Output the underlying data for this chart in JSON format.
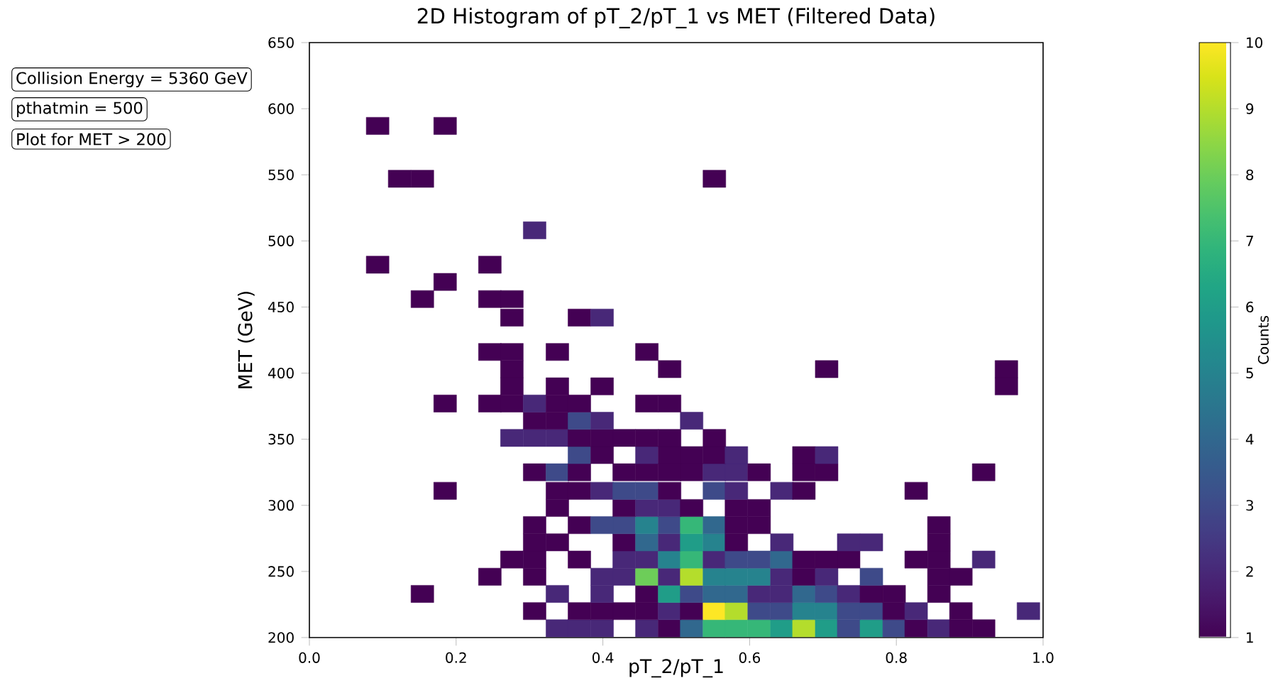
{
  "chart_data": {
    "type": "scatter",
    "title": "2D Histogram of pT_2/pT_1 vs MET (Filtered Data)",
    "xlabel": "pT_2/pT_1",
    "ylabel": "MET (GeV)",
    "clabel": "Counts",
    "annotations": [
      "Collision Energy = 5360 GeV",
      "pthatmin = 500",
      "Plot for MET > 200"
    ],
    "marker": "square",
    "x": [
      0.338,
      0.368,
      0.399,
      0.46,
      0.491,
      0.521,
      0.552,
      0.582,
      0.613,
      0.644,
      0.674,
      0.705,
      0.735,
      0.766,
      0.797,
      0.827,
      0.858,
      0.888,
      0.919,
      0.307,
      0.368,
      0.399,
      0.429,
      0.46,
      0.491,
      0.521,
      0.552,
      0.582,
      0.613,
      0.644,
      0.674,
      0.705,
      0.735,
      0.766,
      0.797,
      0.827,
      0.888,
      0.98,
      0.154,
      0.338,
      0.399,
      0.46,
      0.491,
      0.521,
      0.552,
      0.582,
      0.613,
      0.644,
      0.674,
      0.705,
      0.735,
      0.766,
      0.797,
      0.858,
      0.246,
      0.307,
      0.399,
      0.429,
      0.46,
      0.491,
      0.521,
      0.552,
      0.582,
      0.613,
      0.644,
      0.674,
      0.705,
      0.766,
      0.858,
      0.888,
      0.276,
      0.307,
      0.368,
      0.429,
      0.46,
      0.491,
      0.521,
      0.552,
      0.582,
      0.613,
      0.644,
      0.674,
      0.705,
      0.735,
      0.827,
      0.858,
      0.919,
      0.307,
      0.338,
      0.429,
      0.46,
      0.491,
      0.521,
      0.552,
      0.582,
      0.644,
      0.735,
      0.766,
      0.858,
      0.307,
      0.368,
      0.399,
      0.429,
      0.46,
      0.491,
      0.521,
      0.552,
      0.582,
      0.613,
      0.858,
      0.338,
      0.429,
      0.46,
      0.491,
      0.521,
      0.582,
      0.613,
      0.185,
      0.338,
      0.368,
      0.399,
      0.429,
      0.46,
      0.491,
      0.552,
      0.582,
      0.644,
      0.674,
      0.827,
      0.307,
      0.338,
      0.368,
      0.429,
      0.46,
      0.491,
      0.521,
      0.552,
      0.582,
      0.613,
      0.674,
      0.705,
      0.919,
      0.368,
      0.399,
      0.46,
      0.491,
      0.521,
      0.552,
      0.582,
      0.674,
      0.705,
      0.276,
      0.307,
      0.338,
      0.368,
      0.399,
      0.429,
      0.46,
      0.491,
      0.552,
      0.307,
      0.338,
      0.368,
      0.399,
      0.521,
      0.185,
      0.246,
      0.276,
      0.307,
      0.338,
      0.368,
      0.46,
      0.491,
      0.276,
      0.338,
      0.399,
      0.95,
      0.276,
      0.491,
      0.705,
      0.95,
      0.246,
      0.276,
      0.338,
      0.46,
      0.276,
      0.368,
      0.399,
      0.154,
      0.246,
      0.276,
      0.185,
      0.093,
      0.246,
      0.307,
      0.123,
      0.154,
      0.552,
      0.093,
      0.185
    ],
    "values": [
      207,
      207,
      207,
      207,
      207,
      207,
      207,
      207,
      207,
      207,
      207,
      207,
      207,
      207,
      207,
      207,
      207,
      207,
      207,
      220,
      220,
      220,
      220,
      220,
      220,
      220,
      220,
      220,
      220,
      220,
      220,
      220,
      220,
      220,
      220,
      220,
      220,
      220,
      233,
      233,
      233,
      233,
      233,
      233,
      233,
      233,
      233,
      233,
      233,
      233,
      233,
      233,
      233,
      233,
      246,
      246,
      246,
      246,
      246,
      246,
      246,
      246,
      246,
      246,
      246,
      246,
      246,
      246,
      246,
      246,
      259,
      259,
      259,
      259,
      259,
      259,
      259,
      259,
      259,
      259,
      259,
      259,
      259,
      259,
      259,
      259,
      259,
      272,
      272,
      272,
      272,
      272,
      272,
      272,
      272,
      272,
      272,
      272,
      272,
      285,
      285,
      285,
      285,
      285,
      285,
      285,
      285,
      285,
      285,
      285,
      298,
      298,
      298,
      298,
      298,
      298,
      298,
      311,
      311,
      311,
      311,
      311,
      311,
      311,
      311,
      311,
      311,
      311,
      311,
      325,
      325,
      325,
      325,
      325,
      325,
      325,
      325,
      325,
      325,
      325,
      325,
      325,
      338,
      338,
      338,
      338,
      338,
      338,
      338,
      338,
      338,
      351,
      351,
      351,
      351,
      351,
      351,
      351,
      351,
      351,
      364,
      364,
      364,
      364,
      364,
      377,
      377,
      377,
      377,
      377,
      377,
      377,
      377,
      390,
      390,
      390,
      390,
      403,
      403,
      403,
      403,
      416,
      416,
      416,
      416,
      442,
      442,
      442,
      456,
      456,
      456,
      469,
      482,
      482,
      508,
      547,
      547,
      547,
      587,
      587
    ],
    "cvalues": [
      2,
      2,
      2,
      2,
      1,
      4,
      7,
      7,
      7,
      6,
      9,
      6,
      3,
      6,
      3,
      1,
      2,
      1,
      1,
      1,
      1,
      1,
      1,
      1,
      2,
      1,
      10,
      9,
      3,
      3,
      5,
      5,
      3,
      3,
      1,
      2,
      1,
      2,
      1,
      2,
      2,
      1,
      6,
      3,
      4,
      4,
      2,
      2,
      4,
      3,
      2,
      1,
      1,
      1,
      1,
      1,
      2,
      2,
      8,
      2,
      9,
      5,
      5,
      5,
      2,
      1,
      2,
      3,
      1,
      1,
      1,
      1,
      1,
      2,
      2,
      5,
      7,
      2,
      3,
      3,
      4,
      1,
      1,
      1,
      1,
      1,
      2,
      1,
      1,
      1,
      4,
      2,
      6,
      5,
      1,
      2,
      2,
      2,
      1,
      1,
      1,
      3,
      3,
      5,
      3,
      7,
      4,
      1,
      1,
      1,
      1,
      1,
      2,
      2,
      1,
      1,
      1,
      1,
      1,
      1,
      2,
      3,
      3,
      1,
      3,
      2,
      2,
      1,
      1,
      1,
      3,
      1,
      1,
      1,
      1,
      1,
      2,
      2,
      1,
      1,
      1,
      1,
      3,
      1,
      2,
      1,
      1,
      1,
      2,
      1,
      2,
      2,
      2,
      2,
      1,
      1,
      1,
      1,
      1,
      1,
      1,
      1,
      3,
      2,
      2,
      1,
      1,
      1,
      2,
      1,
      1,
      1,
      1,
      1,
      1,
      1,
      1,
      1,
      1,
      1,
      1,
      1,
      1,
      1,
      1,
      1,
      1,
      2,
      1,
      1,
      1,
      1,
      1,
      1,
      2,
      1,
      1,
      1,
      1,
      1
    ],
    "xlim": [
      0,
      1
    ],
    "ylim": [
      200,
      650
    ],
    "xticks": [
      {
        "value": 0,
        "label": "0.0"
      },
      {
        "value": 0.2,
        "label": "0.2"
      },
      {
        "value": 0.4,
        "label": "0.4"
      },
      {
        "value": 0.6,
        "label": "0.6"
      },
      {
        "value": 0.8,
        "label": "0.8"
      },
      {
        "value": 1,
        "label": "1.0"
      }
    ],
    "yticks": [
      200,
      250,
      300,
      350,
      400,
      450,
      500,
      550,
      600,
      650
    ],
    "clim": [
      1,
      10
    ],
    "cticks": [
      1,
      2,
      3,
      4,
      5,
      6,
      7,
      8,
      9,
      10
    ]
  }
}
